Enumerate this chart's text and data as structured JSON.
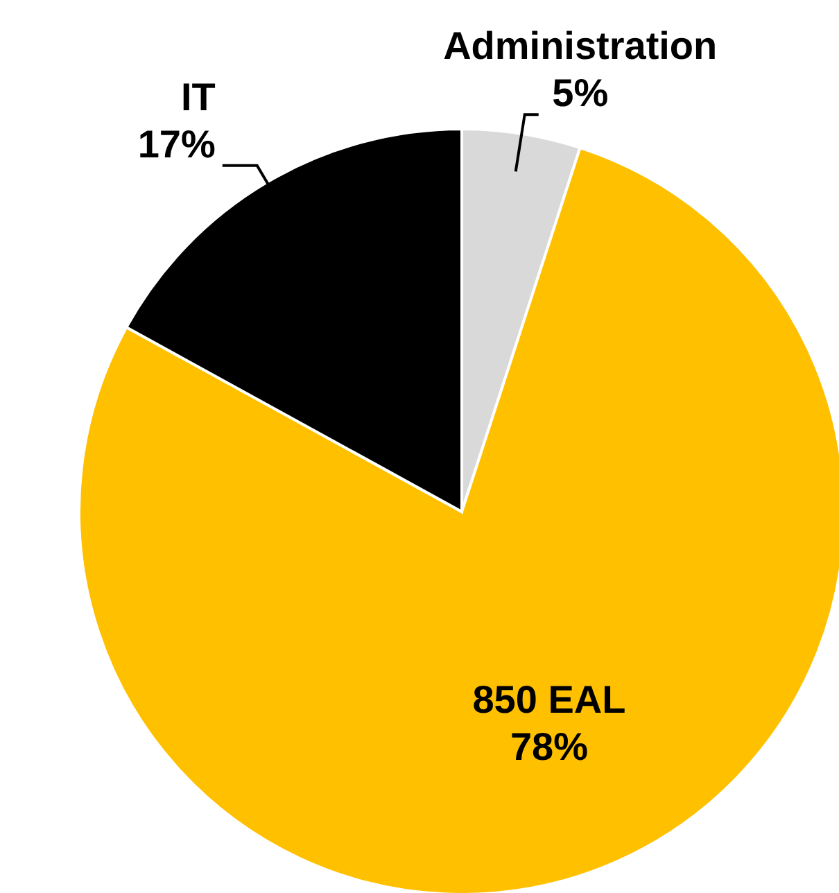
{
  "chart_data": {
    "type": "pie",
    "categories": [
      "Administration",
      "850 EAL",
      "IT"
    ],
    "values": [
      5,
      78,
      17
    ],
    "colors": [
      "#d9d9d9",
      "#ffc000",
      "#000000"
    ],
    "value_labels": [
      "5%",
      "78%",
      "17%"
    ],
    "legend": false
  }
}
